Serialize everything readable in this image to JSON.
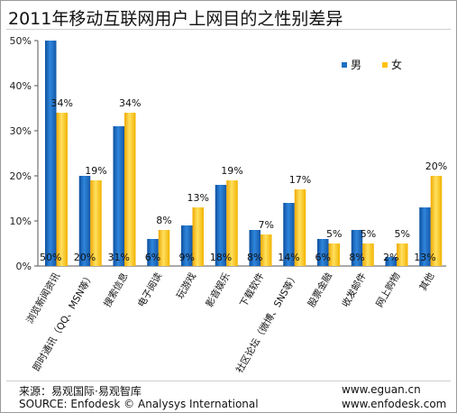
{
  "chart_data": {
    "type": "bar",
    "title": "2011年移动互联网用户上网目的之性别差异",
    "categories": [
      "浏览新闻资讯",
      "即时通讯（QQ、MSN等）",
      "搜索信息",
      "电子阅读",
      "玩游戏",
      "影音娱乐",
      "下载软件",
      "社区论坛（微博、SNS等）",
      "股票金融",
      "收发邮件",
      "网上购物",
      "其他"
    ],
    "series": [
      {
        "name": "男",
        "values": [
          50,
          20,
          31,
          6,
          9,
          18,
          8,
          14,
          6,
          8,
          2,
          13
        ],
        "labels": [
          "50%",
          "20%",
          "31%",
          "6%",
          "9%",
          "18%",
          "8%",
          "14%",
          "6%",
          "8%",
          "2%",
          "13%"
        ],
        "color": "#1f6fc2"
      },
      {
        "name": "女",
        "values": [
          34,
          19,
          34,
          8,
          13,
          19,
          7,
          17,
          5,
          5,
          5,
          20
        ],
        "labels": [
          "34%",
          "19%",
          "34%",
          "8%",
          "13%",
          "19%",
          "7%",
          "17%",
          "5%",
          "5%",
          "5%",
          "20%"
        ],
        "color": "#ffc20e"
      }
    ],
    "y_ticks": [
      "0%",
      "10%",
      "20%",
      "30%",
      "40%",
      "50%"
    ],
    "ylim": [
      0,
      50
    ],
    "grid": false,
    "legend_position": "top-right"
  },
  "footer": {
    "source_cn": "来源：易观国际·易观智库",
    "source_en": "SOURCE: Enfodesk © Analysys International",
    "url1": "www.eguan.cn",
    "url2": "www.enfodesk.com"
  }
}
